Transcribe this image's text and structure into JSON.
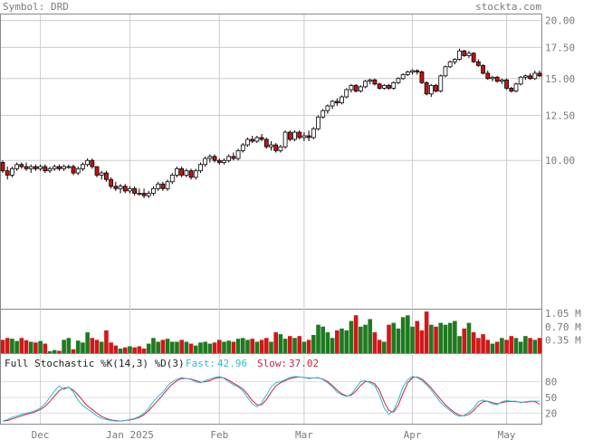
{
  "header": {
    "symbol_label": "Symbol: DRD",
    "site": "stockta.com"
  },
  "colors": {
    "up_body": "#ffffff",
    "down_body": "#cc1111",
    "vol_up": "#1f7a1f",
    "vol_down": "#d01818",
    "fast_line": "#33bbcc",
    "slow_line": "#cc2244",
    "grid": "#cccccc",
    "text": "#7a7a7a"
  },
  "chart_data": [
    {
      "type": "candlestick",
      "title": "Symbol: DRD",
      "y_ticks": [
        "20.00",
        "17.50",
        "15.00",
        "12.50",
        "10.00"
      ],
      "y_tick_values": [
        20,
        17.5,
        15,
        12.5,
        10
      ],
      "ylim": [
        4.8,
        20.6
      ],
      "log_scale": true,
      "grid": true,
      "x_ticks": [
        "Dec",
        "Jan 2025",
        "Feb",
        "Mar",
        "Apr",
        "May"
      ],
      "x_tick_index": [
        8,
        27,
        46,
        64,
        87,
        107
      ],
      "candles": [
        [
          9.9,
          10.0,
          9.4,
          9.5
        ],
        [
          9.5,
          9.7,
          9.1,
          9.3
        ],
        [
          9.3,
          9.7,
          9.2,
          9.6
        ],
        [
          9.6,
          9.9,
          9.5,
          9.8
        ],
        [
          9.8,
          9.9,
          9.6,
          9.7
        ],
        [
          9.7,
          9.9,
          9.5,
          9.6
        ],
        [
          9.6,
          9.8,
          9.4,
          9.7
        ],
        [
          9.7,
          9.8,
          9.5,
          9.6
        ],
        [
          9.6,
          9.8,
          9.5,
          9.7
        ],
        [
          9.7,
          9.8,
          9.4,
          9.5
        ],
        [
          9.5,
          9.7,
          9.4,
          9.6
        ],
        [
          9.6,
          9.8,
          9.5,
          9.7
        ],
        [
          9.7,
          9.8,
          9.5,
          9.6
        ],
        [
          9.6,
          9.8,
          9.5,
          9.7
        ],
        [
          9.7,
          9.8,
          9.6,
          9.7
        ],
        [
          9.7,
          9.8,
          9.3,
          9.4
        ],
        [
          9.4,
          9.7,
          9.3,
          9.6
        ],
        [
          9.6,
          9.9,
          9.5,
          9.8
        ],
        [
          9.8,
          10.1,
          9.7,
          10.0
        ],
        [
          10.0,
          10.1,
          9.6,
          9.7
        ],
        [
          9.7,
          9.7,
          9.2,
          9.3
        ],
        [
          9.3,
          9.5,
          9.1,
          9.4
        ],
        [
          9.4,
          9.5,
          9.0,
          9.1
        ],
        [
          9.1,
          9.2,
          8.7,
          8.8
        ],
        [
          8.8,
          9.0,
          8.6,
          8.7
        ],
        [
          8.7,
          8.9,
          8.5,
          8.8
        ],
        [
          8.8,
          8.9,
          8.5,
          8.6
        ],
        [
          8.6,
          8.8,
          8.5,
          8.7
        ],
        [
          8.7,
          8.8,
          8.4,
          8.5
        ],
        [
          8.5,
          8.7,
          8.4,
          8.5
        ],
        [
          8.5,
          8.7,
          8.3,
          8.4
        ],
        [
          8.4,
          8.6,
          8.3,
          8.5
        ],
        [
          8.5,
          8.8,
          8.4,
          8.7
        ],
        [
          8.7,
          9.0,
          8.6,
          8.9
        ],
        [
          8.9,
          9.0,
          8.6,
          8.7
        ],
        [
          8.7,
          9.1,
          8.6,
          9.0
        ],
        [
          9.0,
          9.4,
          8.9,
          9.3
        ],
        [
          9.3,
          9.7,
          9.2,
          9.6
        ],
        [
          9.6,
          9.7,
          9.2,
          9.3
        ],
        [
          9.3,
          9.6,
          9.2,
          9.5
        ],
        [
          9.5,
          9.6,
          9.1,
          9.2
        ],
        [
          9.2,
          9.6,
          9.1,
          9.5
        ],
        [
          9.5,
          9.9,
          9.4,
          9.8
        ],
        [
          9.8,
          10.2,
          9.7,
          10.1
        ],
        [
          10.1,
          10.3,
          9.9,
          10.2
        ],
        [
          10.2,
          10.3,
          9.9,
          10.0
        ],
        [
          10.0,
          10.1,
          9.8,
          9.9
        ],
        [
          9.9,
          10.1,
          9.8,
          10.0
        ],
        [
          10.0,
          10.3,
          9.9,
          10.2
        ],
        [
          10.2,
          10.4,
          10.0,
          10.1
        ],
        [
          10.1,
          10.6,
          10.0,
          10.5
        ],
        [
          10.5,
          10.9,
          10.4,
          10.8
        ],
        [
          10.8,
          11.2,
          10.7,
          11.1
        ],
        [
          11.1,
          11.3,
          10.9,
          11.0
        ],
        [
          11.0,
          11.3,
          10.9,
          11.2
        ],
        [
          11.2,
          11.4,
          11.0,
          11.1
        ],
        [
          11.1,
          11.2,
          10.6,
          10.7
        ],
        [
          10.7,
          11.0,
          10.5,
          10.8
        ],
        [
          10.8,
          10.9,
          10.4,
          10.5
        ],
        [
          10.5,
          10.8,
          10.4,
          10.7
        ],
        [
          10.7,
          11.6,
          10.6,
          11.5
        ],
        [
          11.5,
          11.6,
          11.0,
          11.1
        ],
        [
          11.1,
          11.6,
          11.0,
          11.5
        ],
        [
          11.5,
          11.6,
          11.1,
          11.2
        ],
        [
          11.2,
          11.5,
          11.0,
          11.3
        ],
        [
          11.3,
          11.6,
          11.0,
          11.2
        ],
        [
          11.2,
          11.8,
          11.1,
          11.7
        ],
        [
          11.7,
          12.5,
          11.6,
          12.4
        ],
        [
          12.4,
          12.9,
          12.3,
          12.8
        ],
        [
          12.8,
          13.2,
          12.6,
          13.1
        ],
        [
          13.1,
          13.5,
          12.9,
          13.4
        ],
        [
          13.4,
          13.6,
          13.1,
          13.3
        ],
        [
          13.3,
          13.8,
          13.2,
          13.7
        ],
        [
          13.7,
          14.3,
          13.6,
          14.2
        ],
        [
          14.2,
          14.6,
          14.0,
          14.5
        ],
        [
          14.5,
          14.6,
          14.0,
          14.1
        ],
        [
          14.1,
          14.5,
          14.0,
          14.4
        ],
        [
          14.4,
          14.9,
          14.3,
          14.8
        ],
        [
          14.8,
          15.0,
          14.6,
          14.9
        ],
        [
          14.9,
          15.0,
          14.5,
          14.6
        ],
        [
          14.6,
          14.7,
          14.2,
          14.3
        ],
        [
          14.3,
          14.6,
          14.2,
          14.5
        ],
        [
          14.5,
          14.6,
          14.2,
          14.3
        ],
        [
          14.3,
          14.8,
          14.2,
          14.7
        ],
        [
          14.7,
          15.1,
          14.6,
          15.0
        ],
        [
          15.0,
          15.4,
          14.9,
          15.3
        ],
        [
          15.3,
          15.6,
          15.2,
          15.5
        ],
        [
          15.5,
          15.7,
          15.3,
          15.6
        ],
        [
          15.6,
          15.7,
          15.3,
          15.5
        ],
        [
          15.5,
          15.6,
          14.6,
          14.7
        ],
        [
          14.7,
          14.8,
          13.8,
          13.9
        ],
        [
          13.9,
          14.6,
          13.7,
          14.5
        ],
        [
          14.5,
          14.6,
          14.0,
          14.1
        ],
        [
          14.1,
          15.3,
          14.0,
          15.2
        ],
        [
          15.2,
          16.0,
          15.1,
          15.9
        ],
        [
          15.9,
          16.4,
          15.8,
          16.3
        ],
        [
          16.3,
          16.6,
          16.1,
          16.5
        ],
        [
          16.5,
          17.4,
          16.4,
          17.2
        ],
        [
          17.2,
          17.3,
          16.7,
          16.8
        ],
        [
          16.8,
          17.2,
          16.6,
          17.0
        ],
        [
          17.0,
          17.1,
          16.2,
          16.3
        ],
        [
          16.3,
          16.5,
          15.9,
          16.0
        ],
        [
          16.0,
          16.1,
          15.3,
          15.4
        ],
        [
          15.4,
          15.6,
          14.9,
          15.0
        ],
        [
          15.0,
          15.2,
          14.8,
          15.1
        ],
        [
          15.1,
          15.2,
          14.7,
          14.8
        ],
        [
          14.8,
          15.0,
          14.6,
          14.9
        ],
        [
          14.9,
          15.0,
          14.2,
          14.3
        ],
        [
          14.3,
          14.4,
          14.0,
          14.1
        ],
        [
          14.1,
          14.7,
          14.0,
          14.6
        ],
        [
          14.6,
          15.2,
          14.5,
          15.1
        ],
        [
          15.1,
          15.3,
          14.9,
          15.2
        ],
        [
          15.2,
          15.4,
          14.9,
          15.0
        ],
        [
          15.0,
          15.6,
          14.9,
          15.4
        ],
        [
          15.4,
          15.6,
          15.1,
          15.2
        ]
      ]
    },
    {
      "type": "bar",
      "title": "Volume",
      "y_ticks": [
        "1.05 M",
        "0.70 M",
        "0.35 M"
      ],
      "y_tick_values": [
        1.05,
        0.7,
        0.35
      ],
      "ylim": [
        0,
        1.15
      ],
      "values": [
        0.35,
        0.4,
        0.38,
        0.32,
        0.4,
        0.34,
        0.3,
        0.28,
        0.32,
        0.25,
        0.05,
        0.08,
        0.06,
        0.35,
        0.4,
        0.1,
        0.33,
        0.28,
        0.55,
        0.4,
        0.35,
        0.3,
        0.6,
        0.28,
        0.2,
        0.12,
        0.15,
        0.18,
        0.15,
        0.18,
        0.12,
        0.25,
        0.4,
        0.3,
        0.35,
        0.38,
        0.3,
        0.3,
        0.35,
        0.3,
        0.25,
        0.2,
        0.28,
        0.3,
        0.25,
        0.28,
        0.35,
        0.3,
        0.33,
        0.3,
        0.38,
        0.4,
        0.35,
        0.38,
        0.3,
        0.35,
        0.4,
        0.3,
        0.55,
        0.5,
        0.38,
        0.45,
        0.4,
        0.45,
        0.3,
        0.35,
        0.48,
        0.75,
        0.7,
        0.55,
        0.4,
        0.6,
        0.65,
        0.6,
        0.85,
        1.0,
        0.7,
        0.75,
        0.9,
        0.55,
        0.35,
        0.3,
        0.75,
        0.8,
        0.65,
        0.95,
        1.0,
        0.7,
        0.85,
        0.6,
        1.1,
        0.75,
        0.7,
        0.8,
        0.75,
        0.8,
        0.85,
        0.45,
        0.65,
        0.8,
        0.55,
        0.4,
        0.5,
        0.35,
        0.25,
        0.3,
        0.4,
        0.35,
        0.45,
        0.4,
        0.3,
        0.45,
        0.4,
        0.35,
        0.4
      ],
      "up": [
        0,
        0,
        1,
        1,
        0,
        0,
        1,
        0,
        1,
        0,
        1,
        1,
        0,
        1,
        1,
        0,
        1,
        1,
        1,
        0,
        0,
        1,
        0,
        0,
        0,
        1,
        0,
        1,
        0,
        0,
        0,
        1,
        1,
        1,
        0,
        1,
        1,
        1,
        0,
        1,
        0,
        1,
        1,
        1,
        1,
        0,
        0,
        1,
        1,
        0,
        1,
        1,
        1,
        0,
        1,
        0,
        0,
        1,
        0,
        1,
        1,
        0,
        1,
        0,
        1,
        0,
        1,
        1,
        1,
        1,
        1,
        0,
        1,
        1,
        1,
        0,
        1,
        1,
        1,
        0,
        0,
        1,
        0,
        1,
        1,
        1,
        1,
        1,
        0,
        0,
        0,
        1,
        0,
        1,
        1,
        1,
        1,
        1,
        0,
        1,
        0,
        0,
        0,
        0,
        1,
        0,
        1,
        0,
        0,
        1,
        1,
        1,
        0,
        1,
        0
      ]
    },
    {
      "type": "line",
      "title": "Full Stochastic %K(14,3) %D(3)",
      "series": [
        {
          "name": "Fast",
          "label_value": "42.96",
          "values": [
            5,
            8,
            12,
            15,
            18,
            20,
            22,
            25,
            30,
            38,
            50,
            62,
            72,
            65,
            70,
            60,
            45,
            35,
            28,
            22,
            15,
            10,
            8,
            6,
            5,
            5,
            6,
            8,
            10,
            14,
            20,
            30,
            42,
            52,
            60,
            72,
            80,
            85,
            88,
            86,
            84,
            80,
            78,
            82,
            85,
            88,
            90,
            86,
            80,
            74,
            70,
            62,
            50,
            38,
            32,
            40,
            55,
            70,
            78,
            80,
            84,
            88,
            90,
            89,
            88,
            86,
            87,
            88,
            84,
            78,
            70,
            60,
            55,
            52,
            56,
            68,
            80,
            82,
            78,
            72,
            55,
            30,
            18,
            25,
            45,
            70,
            84,
            90,
            88,
            82,
            74,
            64,
            52,
            40,
            32,
            25,
            18,
            14,
            16,
            22,
            30,
            42,
            45,
            42,
            38,
            36,
            42,
            44,
            43,
            43,
            40,
            42,
            43,
            43,
            43
          ]
        },
        {
          "name": "Slow",
          "label_value": "37.02",
          "values": [
            5,
            6,
            9,
            12,
            15,
            18,
            20,
            23,
            27,
            33,
            42,
            53,
            63,
            68,
            69,
            64,
            55,
            44,
            34,
            27,
            20,
            14,
            10,
            7,
            6,
            5,
            6,
            7,
            9,
            12,
            17,
            25,
            35,
            45,
            55,
            66,
            75,
            82,
            86,
            86,
            85,
            82,
            79,
            80,
            82,
            86,
            88,
            87,
            83,
            77,
            72,
            66,
            56,
            44,
            36,
            36,
            46,
            60,
            72,
            78,
            82,
            86,
            88,
            89,
            88,
            87,
            87,
            87,
            85,
            80,
            73,
            64,
            57,
            53,
            54,
            62,
            73,
            80,
            80,
            76,
            64,
            42,
            25,
            22,
            35,
            58,
            78,
            88,
            89,
            85,
            77,
            68,
            57,
            46,
            36,
            28,
            21,
            16,
            15,
            18,
            25,
            35,
            42,
            43,
            40,
            38,
            40,
            42,
            42,
            42,
            41,
            41,
            42,
            42,
            37
          ]
        }
      ],
      "legend_label": "Full Stochastic %K(14,3) %D(3)",
      "fast_label": "Fast:",
      "slow_label": "Slow:",
      "y_ticks": [
        "80",
        "50",
        "20"
      ],
      "y_tick_values": [
        80,
        50,
        20
      ],
      "ylim": [
        0,
        100
      ]
    }
  ]
}
